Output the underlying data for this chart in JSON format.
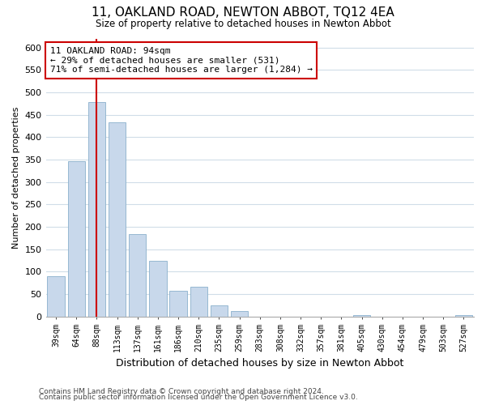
{
  "title": "11, OAKLAND ROAD, NEWTON ABBOT, TQ12 4EA",
  "subtitle": "Size of property relative to detached houses in Newton Abbot",
  "bar_labels": [
    "39sqm",
    "64sqm",
    "88sqm",
    "113sqm",
    "137sqm",
    "161sqm",
    "186sqm",
    "210sqm",
    "235sqm",
    "259sqm",
    "283sqm",
    "308sqm",
    "332sqm",
    "357sqm",
    "381sqm",
    "405sqm",
    "430sqm",
    "454sqm",
    "479sqm",
    "503sqm",
    "527sqm"
  ],
  "bar_values": [
    90,
    347,
    478,
    433,
    183,
    125,
    57,
    67,
    25,
    12,
    0,
    0,
    0,
    0,
    0,
    3,
    0,
    0,
    0,
    0,
    3
  ],
  "bar_color": "#c8d8eb",
  "bar_edge_color": "#8ab0cc",
  "ylabel": "Number of detached properties",
  "xlabel": "Distribution of detached houses by size in Newton Abbot",
  "ylim": [
    0,
    620
  ],
  "yticks": [
    0,
    50,
    100,
    150,
    200,
    250,
    300,
    350,
    400,
    450,
    500,
    550,
    600
  ],
  "property_line_x": 2,
  "property_line_color": "#cc0000",
  "annotation_text": "11 OAKLAND ROAD: 94sqm\n← 29% of detached houses are smaller (531)\n71% of semi-detached houses are larger (1,284) →",
  "annotation_box_color": "#ffffff",
  "annotation_box_edge": "#cc0000",
  "footer_line1": "Contains HM Land Registry data © Crown copyright and database right 2024.",
  "footer_line2": "Contains public sector information licensed under the Open Government Licence v3.0.",
  "grid_color": "#d0dde8"
}
